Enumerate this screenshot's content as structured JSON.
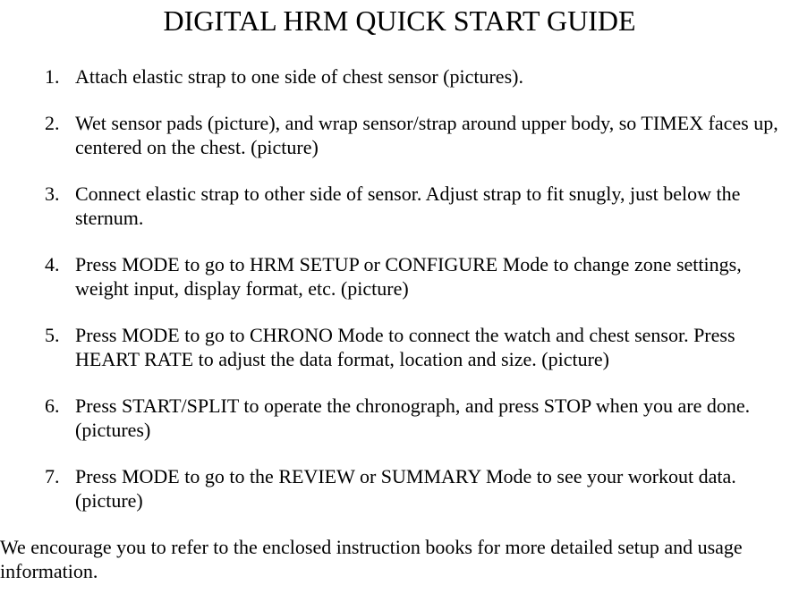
{
  "title": "DIGITAL HRM QUICK START GUIDE",
  "steps": [
    "Attach elastic strap to one side of chest sensor (pictures).",
    "Wet sensor pads (picture), and wrap sensor/strap around upper body, so TIMEX faces up, centered on the chest. (picture)",
    "Connect elastic strap to other side of sensor.  Adjust strap to fit snugly, just below the sternum.",
    "Press MODE to go to HRM SETUP or CONFIGURE Mode to change zone settings, weight input, display format, etc. (picture)",
    "Press MODE to go to CHRONO Mode to connect the watch and chest sensor.  Press HEART RATE to adjust the data format, location and size. (picture)",
    "Press START/SPLIT to operate the chronograph, and press STOP when you are done. (pictures)",
    "Press MODE to go to the REVIEW or SUMMARY Mode to see your workout data. (picture)"
  ],
  "footer": "We encourage you to refer to the enclosed instruction books for more detailed setup and usage information."
}
